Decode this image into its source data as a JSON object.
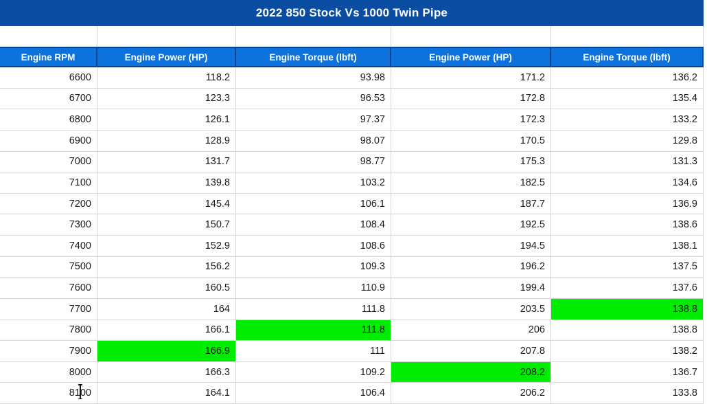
{
  "window_title": "2022 850 Stock Vs 1000 Twin Pipe",
  "colors": {
    "title_bar_bg": "#0B4DA2",
    "title_text": "#FFFFFF",
    "header_bg": "#0E72DC",
    "header_border": "#0A4390",
    "header_text": "#FFFFFF",
    "gridline": "#D6D6D6",
    "cell_text": "#1A1A1A",
    "highlight_green": "#00EC00"
  },
  "table": {
    "columns": [
      "Engine RPM",
      "Engine Power (HP)",
      "Engine Torque (lbft)",
      "Engine Power (HP)",
      "Engine Torque (lbft)"
    ],
    "rows": [
      {
        "cells": [
          "6600",
          "118.2",
          "93.98",
          "171.2",
          "136.2"
        ]
      },
      {
        "cells": [
          "6700",
          "123.3",
          "96.53",
          "172.8",
          "135.4"
        ]
      },
      {
        "cells": [
          "6800",
          "126.1",
          "97.37",
          "172.3",
          "133.2"
        ]
      },
      {
        "cells": [
          "6900",
          "128.9",
          "98.07",
          "170.5",
          "129.8"
        ]
      },
      {
        "cells": [
          "7000",
          "131.7",
          "98.77",
          "175.3",
          "131.3"
        ]
      },
      {
        "cells": [
          "7100",
          "139.8",
          "103.2",
          "182.5",
          "134.6"
        ]
      },
      {
        "cells": [
          "7200",
          "145.4",
          "106.1",
          "187.7",
          "136.9"
        ]
      },
      {
        "cells": [
          "7300",
          "150.7",
          "108.4",
          "192.5",
          "138.6"
        ]
      },
      {
        "cells": [
          "7400",
          "152.9",
          "108.6",
          "194.5",
          "138.1"
        ]
      },
      {
        "cells": [
          "7500",
          "156.2",
          "109.3",
          "196.2",
          "137.5"
        ]
      },
      {
        "cells": [
          "7600",
          "160.5",
          "110.9",
          "199.4",
          "137.6"
        ]
      },
      {
        "cells": [
          "7700",
          "164",
          "111.8",
          "203.5",
          "138.8"
        ]
      },
      {
        "cells": [
          "7800",
          "166.1",
          "111.8",
          "206",
          "138.8"
        ]
      },
      {
        "cells": [
          "7900",
          "166.9",
          "111",
          "207.8",
          "138.2"
        ]
      },
      {
        "cells": [
          "8000",
          "166.3",
          "109.2",
          "208.2",
          "136.7"
        ]
      },
      {
        "cells": [
          "8100",
          "164.1",
          "106.4",
          "206.2",
          "133.8"
        ]
      }
    ],
    "highlighted_cells": [
      {
        "row": 11,
        "col": 4,
        "value": "138.8"
      },
      {
        "row": 12,
        "col": 2,
        "value": "111.8"
      },
      {
        "row": 13,
        "col": 1,
        "value": "166.9"
      },
      {
        "row": 14,
        "col": 3,
        "value": "208.2"
      }
    ],
    "text_cursor_cell": {
      "row": 15,
      "col": 0
    }
  }
}
